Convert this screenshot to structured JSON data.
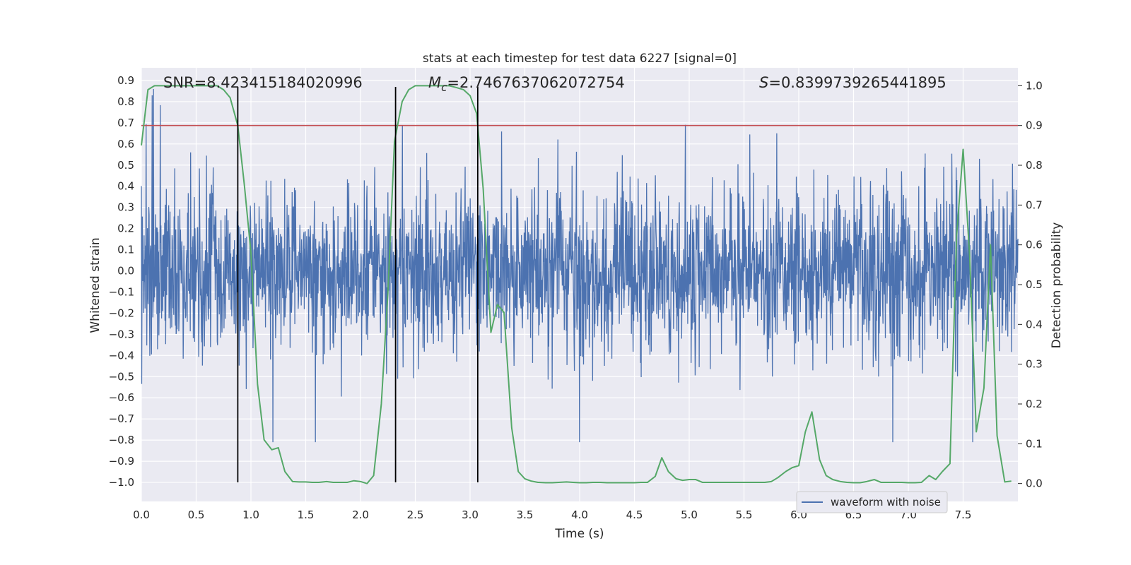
{
  "chart_data": {
    "type": "line",
    "title": "stats at each timestep for test data 6227 [signal=0]",
    "xlabel": "Time (s)",
    "ylabel_left": "Whitened strain",
    "ylabel_right": "Detection probability",
    "xlim": [
      0.0,
      8.0
    ],
    "ylim_left": [
      -1.09,
      0.96
    ],
    "ylim_right": [
      -0.045,
      1.045
    ],
    "x_ticks": [
      "0.0",
      "0.5",
      "1.0",
      "1.5",
      "2.0",
      "2.5",
      "3.0",
      "3.5",
      "4.0",
      "4.5",
      "5.0",
      "5.5",
      "6.0",
      "6.5",
      "7.0",
      "7.5"
    ],
    "y_left_ticks": [
      "−1.0",
      "−0.9",
      "−0.8",
      "−0.7",
      "−0.6",
      "−0.5",
      "−0.4",
      "−0.3",
      "−0.2",
      "−0.1",
      "0.0",
      "0.1",
      "0.2",
      "0.3",
      "0.4",
      "0.5",
      "0.6",
      "0.7",
      "0.8",
      "0.9"
    ],
    "y_right_ticks": [
      "0.0",
      "0.1",
      "0.2",
      "0.3",
      "0.4",
      "0.5",
      "0.6",
      "0.7",
      "0.8",
      "0.9",
      "1.0"
    ],
    "grid": true,
    "legend": {
      "placement": "lower-right",
      "entries": [
        "waveform with noise"
      ]
    },
    "annotations": {
      "snr": "SNR=8.423415184020996",
      "mc_symbol": "M",
      "mc_sub": "c",
      "mc_value": "=2.7467637062072754",
      "s_symbol": "S",
      "s_value": "=0.8399739265441895"
    },
    "threshold_line": {
      "axis": "right",
      "y": 0.9,
      "color": "#c44e52"
    },
    "vertical_lines": {
      "x": [
        0.88,
        2.32,
        3.07
      ],
      "y_range": [
        -1.0,
        0.87
      ],
      "color": "#000000"
    },
    "series": [
      {
        "name": "waveform with noise",
        "axis": "left",
        "color": "#4c72b0",
        "style": "dense noise, approx. range",
        "x_range": [
          0.0,
          8.0
        ],
        "approx_peak_max": 0.86,
        "approx_peak_min": -0.81
      },
      {
        "axis": "right",
        "color": "#55a868",
        "x": [
          0.0,
          0.06,
          0.12,
          0.19,
          0.25,
          0.31,
          0.38,
          0.44,
          0.5,
          0.56,
          0.62,
          0.69,
          0.75,
          0.81,
          0.88,
          0.94,
          1.0,
          1.06,
          1.12,
          1.19,
          1.25,
          1.31,
          1.38,
          1.44,
          1.5,
          1.56,
          1.62,
          1.69,
          1.75,
          1.81,
          1.88,
          1.94,
          2.0,
          2.06,
          2.12,
          2.19,
          2.25,
          2.31,
          2.38,
          2.44,
          2.5,
          2.56,
          2.62,
          2.69,
          2.75,
          2.81,
          2.88,
          2.94,
          3.0,
          3.06,
          3.12,
          3.19,
          3.25,
          3.31,
          3.38,
          3.44,
          3.5,
          3.56,
          3.62,
          3.69,
          3.75,
          3.81,
          3.88,
          3.94,
          4.0,
          4.06,
          4.12,
          4.19,
          4.25,
          4.31,
          4.38,
          4.44,
          4.5,
          4.56,
          4.62,
          4.69,
          4.75,
          4.81,
          4.88,
          4.94,
          5.0,
          5.06,
          5.12,
          5.19,
          5.25,
          5.31,
          5.38,
          5.44,
          5.5,
          5.56,
          5.62,
          5.69,
          5.75,
          5.81,
          5.88,
          5.94,
          6.0,
          6.06,
          6.12,
          6.19,
          6.25,
          6.31,
          6.38,
          6.44,
          6.5,
          6.56,
          6.62,
          6.69,
          6.75,
          6.81,
          6.88,
          6.94,
          7.0,
          7.06,
          7.12,
          7.19,
          7.25,
          7.31,
          7.38,
          7.44,
          7.5,
          7.56,
          7.62,
          7.69,
          7.75,
          7.81,
          7.88,
          7.94
        ],
        "y": [
          0.85,
          0.99,
          1.0,
          1.0,
          1.0,
          1.0,
          1.0,
          1.0,
          1.0,
          1.0,
          1.0,
          1.0,
          0.99,
          0.97,
          0.9,
          0.75,
          0.58,
          0.25,
          0.11,
          0.085,
          0.09,
          0.03,
          0.005,
          0.004,
          0.004,
          0.003,
          0.003,
          0.005,
          0.003,
          0.003,
          0.003,
          0.007,
          0.005,
          0.0,
          0.02,
          0.2,
          0.48,
          0.86,
          0.96,
          0.99,
          1.0,
          1.0,
          1.0,
          1.0,
          1.0,
          1.0,
          0.995,
          0.99,
          0.975,
          0.93,
          0.74,
          0.38,
          0.45,
          0.43,
          0.14,
          0.03,
          0.012,
          0.006,
          0.003,
          0.002,
          0.002,
          0.003,
          0.004,
          0.003,
          0.002,
          0.002,
          0.003,
          0.003,
          0.002,
          0.002,
          0.002,
          0.002,
          0.002,
          0.003,
          0.003,
          0.018,
          0.065,
          0.03,
          0.012,
          0.008,
          0.01,
          0.01,
          0.003,
          0.003,
          0.003,
          0.003,
          0.003,
          0.003,
          0.003,
          0.003,
          0.003,
          0.003,
          0.005,
          0.015,
          0.03,
          0.04,
          0.045,
          0.13,
          0.18,
          0.06,
          0.02,
          0.01,
          0.005,
          0.003,
          0.002,
          0.002,
          0.005,
          0.01,
          0.003,
          0.003,
          0.003,
          0.003,
          0.002,
          0.002,
          0.003,
          0.02,
          0.01,
          0.03,
          0.05,
          0.62,
          0.84,
          0.57,
          0.13,
          0.24,
          0.6,
          0.12,
          0.004,
          0.006
        ]
      }
    ]
  }
}
